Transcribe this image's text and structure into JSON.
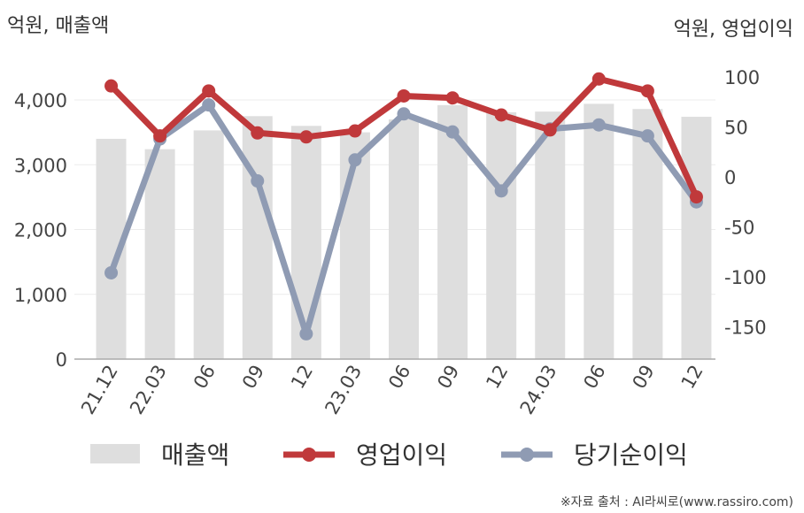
{
  "chart_data": {
    "type": "bar+line",
    "categories": [
      "21.12",
      "22.03",
      "06",
      "09",
      "12",
      "23.03",
      "06",
      "09",
      "12",
      "24.03",
      "06",
      "09",
      "12"
    ],
    "left_axis": {
      "title": "억원, 매출액",
      "ylim": [
        0,
        4000
      ],
      "ticks": [
        0,
        1000,
        2000,
        3000,
        4000
      ],
      "tick_labels": [
        "0",
        "1,000",
        "2,000",
        "3,000",
        "4,000"
      ]
    },
    "right_axis": {
      "title": "억원, 영업이익",
      "ylim": [
        -150,
        100
      ],
      "ticks": [
        -150,
        -100,
        -50,
        0,
        50,
        100
      ],
      "tick_labels": [
        "-150",
        "-100",
        "-50",
        "0",
        "50",
        "100"
      ]
    },
    "series": [
      {
        "name": "매출액",
        "kind": "bar",
        "axis": "left",
        "color": "#dedede",
        "values": [
          3400,
          3240,
          3530,
          3750,
          3600,
          3500,
          3700,
          3920,
          3810,
          3820,
          3940,
          3860,
          3740
        ]
      },
      {
        "name": "영업이익",
        "kind": "line",
        "axis": "right",
        "color": "#c0393b",
        "values": [
          91,
          41,
          86,
          44,
          40,
          46,
          81,
          79,
          62,
          47,
          98,
          86,
          -20
        ]
      },
      {
        "name": "당기순이익",
        "kind": "line",
        "axis": "right",
        "color": "#8f9bb3",
        "values": [
          -96,
          38,
          72,
          -4,
          -157,
          17,
          63,
          45,
          -14,
          48,
          52,
          41,
          -25
        ]
      }
    ],
    "grid": true,
    "legend": "bottom"
  },
  "source": "※자료 출처 : AI라씨로(www.rassiro.com)"
}
